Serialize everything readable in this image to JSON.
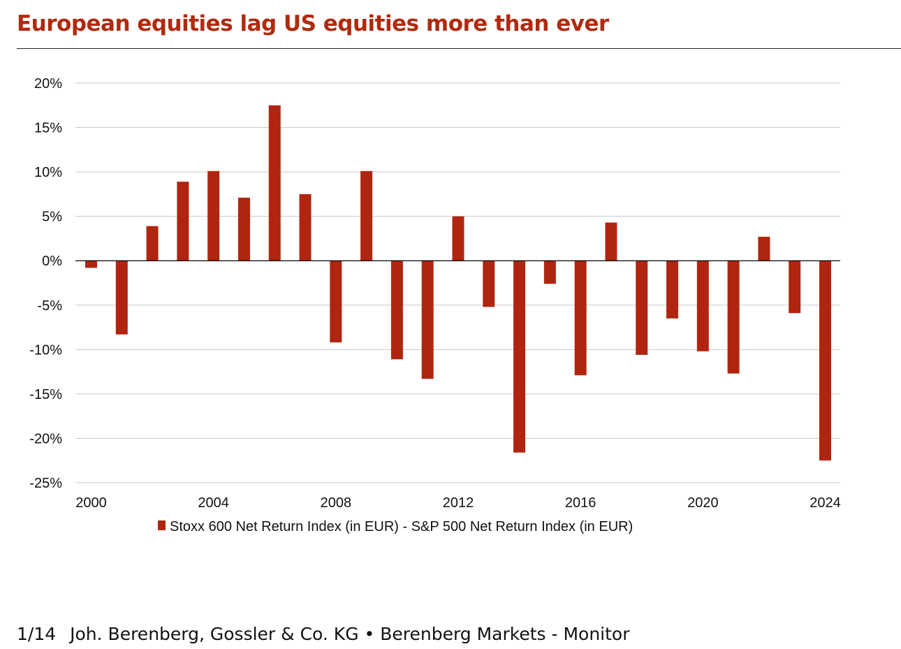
{
  "title": "European equities lag US equities more than ever",
  "footer": {
    "page": "1/14",
    "source": "Joh. Berenberg, Gossler & Co. KG • Berenberg Markets - Monitor"
  },
  "colors": {
    "title": "#b02b0f",
    "bar": "#b02510",
    "grid": "#c8c8c8",
    "zero_line": "#000000"
  },
  "chart_data": {
    "type": "bar",
    "title": "European equities lag US equities more than ever",
    "xlabel": "",
    "ylabel": "",
    "ylim": [
      -25,
      20
    ],
    "yticks": [
      20,
      15,
      10,
      5,
      0,
      -5,
      -10,
      -15,
      -20,
      -25
    ],
    "ytick_labels": [
      "20%",
      "15%",
      "10%",
      "5%",
      "0%",
      "-5%",
      "-10%",
      "-15%",
      "-20%",
      "-25%"
    ],
    "xtick_labels": [
      "2000",
      "2004",
      "2008",
      "2012",
      "2016",
      "2020",
      "2024"
    ],
    "grid": true,
    "legend_position": "bottom",
    "categories": [
      2000,
      2001,
      2002,
      2003,
      2004,
      2005,
      2006,
      2007,
      2008,
      2009,
      2010,
      2011,
      2012,
      2013,
      2014,
      2015,
      2016,
      2017,
      2018,
      2019,
      2020,
      2021,
      2022,
      2023,
      2024
    ],
    "series": [
      {
        "name": "Stoxx 600 Net Return Index (in EUR) - S&P 500 Net Return Index (in EUR)",
        "values": [
          -0.8,
          -8.3,
          3.9,
          8.9,
          10.1,
          7.1,
          17.5,
          7.5,
          -9.2,
          10.1,
          -11.1,
          -13.3,
          5.0,
          -5.2,
          -21.6,
          -2.6,
          -12.9,
          4.3,
          -10.6,
          -6.5,
          -10.2,
          -12.7,
          2.7,
          -5.9,
          -22.5
        ]
      }
    ]
  }
}
